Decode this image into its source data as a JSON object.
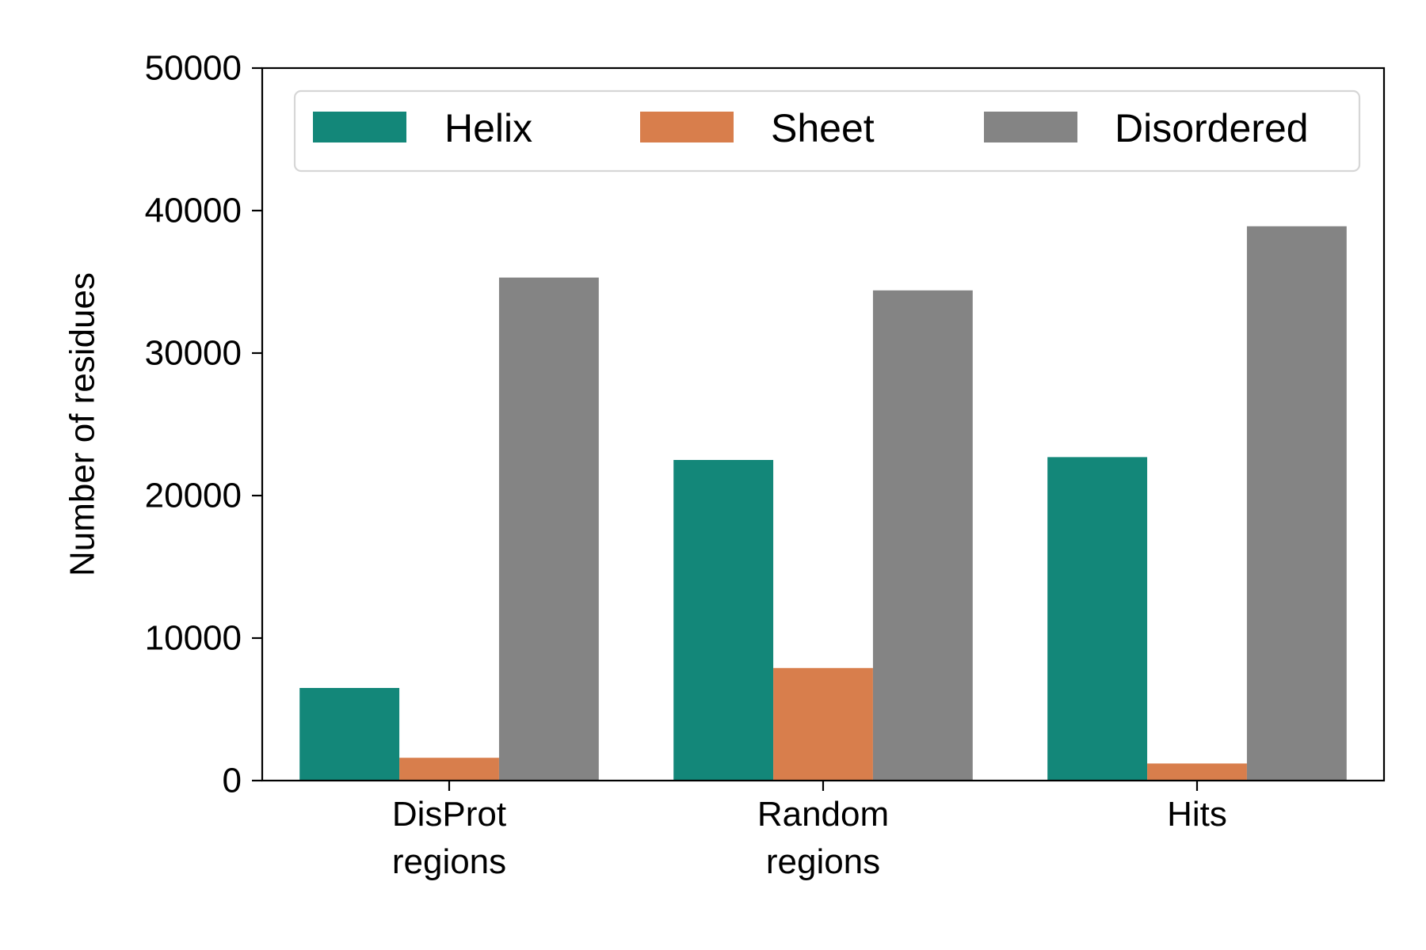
{
  "chart_data": {
    "type": "bar",
    "categories": [
      [
        "DisProt",
        "regions"
      ],
      [
        "Random",
        "regions"
      ],
      [
        "Hits"
      ]
    ],
    "series": [
      {
        "name": "Helix",
        "color": "#138779",
        "values": [
          6500,
          22500,
          22700
        ]
      },
      {
        "name": "Sheet",
        "color": "#d87e4c",
        "values": [
          1600,
          7900,
          1200
        ]
      },
      {
        "name": "Disordered",
        "color": "#848484",
        "values": [
          35300,
          34400,
          38900
        ]
      }
    ],
    "yticks": [
      "0",
      "10000",
      "20000",
      "30000",
      "40000",
      "50000"
    ],
    "ylabel": "Number of residues",
    "xlabel": "",
    "ylim": [
      0,
      50000
    ],
    "grid": false,
    "legend_position": "top"
  }
}
